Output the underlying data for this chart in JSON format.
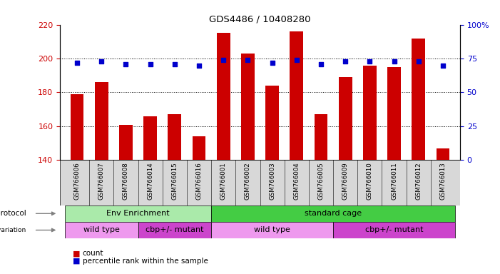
{
  "title": "GDS4486 / 10408280",
  "samples": [
    "GSM766006",
    "GSM766007",
    "GSM766008",
    "GSM766014",
    "GSM766015",
    "GSM766016",
    "GSM766001",
    "GSM766002",
    "GSM766003",
    "GSM766004",
    "GSM766005",
    "GSM766009",
    "GSM766010",
    "GSM766011",
    "GSM766012",
    "GSM766013"
  ],
  "counts": [
    179,
    186,
    161,
    166,
    167,
    154,
    215,
    203,
    184,
    216,
    167,
    189,
    196,
    195,
    212,
    147
  ],
  "percentiles": [
    72,
    73,
    71,
    71,
    71,
    70,
    74,
    74,
    72,
    74,
    71,
    73,
    73,
    73,
    73,
    70
  ],
  "ymin": 140,
  "ymax": 220,
  "yticks": [
    140,
    160,
    180,
    200,
    220
  ],
  "y2ticks": [
    0,
    25,
    50,
    75,
    100
  ],
  "y2labels": [
    "0",
    "25",
    "50",
    "75",
    "100%"
  ],
  "bar_color": "#cc0000",
  "dot_color": "#0000cc",
  "protocol_groups": [
    {
      "label": "Env Enrichment",
      "start": 0,
      "end": 5,
      "color": "#aaeaaa"
    },
    {
      "label": "standard cage",
      "start": 6,
      "end": 15,
      "color": "#44cc44"
    }
  ],
  "genotype_groups": [
    {
      "label": "wild type",
      "start": 0,
      "end": 2,
      "color": "#ee99ee"
    },
    {
      "label": "cbp+/- mutant",
      "start": 3,
      "end": 5,
      "color": "#cc44cc"
    },
    {
      "label": "wild type",
      "start": 6,
      "end": 10,
      "color": "#ee99ee"
    },
    {
      "label": "cbp+/- mutant",
      "start": 11,
      "end": 15,
      "color": "#cc44cc"
    }
  ],
  "bar_width": 0.55,
  "figsize": [
    7.01,
    3.84
  ],
  "dpi": 100
}
